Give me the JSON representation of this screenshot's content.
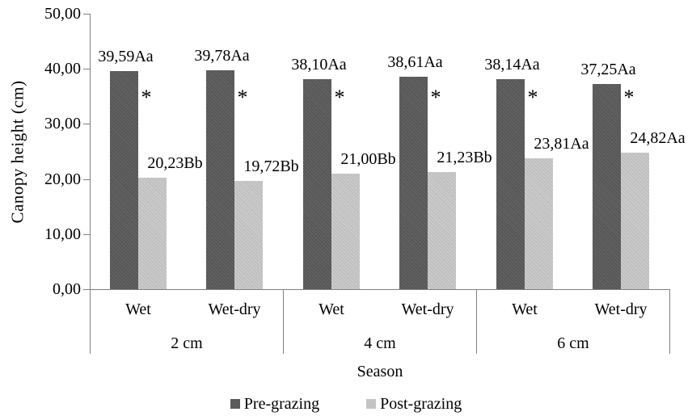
{
  "chart_data": {
    "type": "bar",
    "title": "",
    "ylabel": "Canopy height (cm)",
    "xlabel": "Season",
    "ylim": [
      0,
      50
    ],
    "ytick_step": 10,
    "ytick_labels": [
      "0,00",
      "10,00",
      "20,00",
      "30,00",
      "40,00",
      "50,00"
    ],
    "grid": false,
    "legend_position": "bottom",
    "groups": [
      "2 cm",
      "4 cm",
      "6 cm"
    ],
    "categories": [
      "Wet",
      "Wet-dry",
      "Wet",
      "Wet-dry",
      "Wet",
      "Wet-dry"
    ],
    "series": [
      {
        "name": "Pre-grazing",
        "color": "#5b5b5b",
        "values": [
          39.59,
          39.78,
          38.1,
          38.61,
          38.14,
          37.25
        ],
        "labels": [
          "39,59Aa",
          "39,78Aa",
          "38,10Aa",
          "38,61Aa",
          "38,14Aa",
          "37,25Aa"
        ]
      },
      {
        "name": "Post-grazing",
        "color": "#c4c4c4",
        "values": [
          20.23,
          19.72,
          21.0,
          21.23,
          23.81,
          24.82
        ],
        "labels": [
          "20,23Bb",
          "19,72Bb",
          "21,00Bb",
          "21,23Bb",
          "23,81Aa",
          "24,82Aa"
        ]
      }
    ],
    "significance_markers": [
      "*",
      "*",
      "*",
      "*",
      "*",
      "*"
    ]
  }
}
